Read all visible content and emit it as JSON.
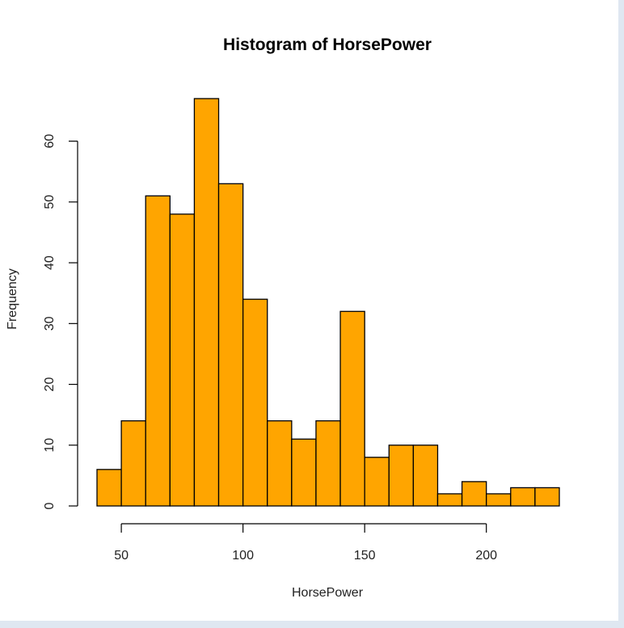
{
  "chart_data": {
    "type": "bar",
    "title": "Histogram of HorsePower",
    "xlabel": "HorsePower",
    "ylabel": "Frequency",
    "bin_edges": [
      40,
      50,
      60,
      70,
      80,
      90,
      100,
      110,
      120,
      130,
      140,
      150,
      160,
      170,
      180,
      190,
      200,
      210,
      220,
      230
    ],
    "values": [
      6,
      14,
      51,
      48,
      67,
      53,
      34,
      14,
      11,
      14,
      32,
      8,
      10,
      10,
      2,
      4,
      2,
      3,
      3
    ],
    "xlim": [
      40,
      230
    ],
    "ylim": [
      0,
      67
    ],
    "x_ticks": [
      50,
      100,
      150,
      200
    ],
    "y_ticks": [
      0,
      10,
      20,
      30,
      40,
      50,
      60
    ],
    "grid": false,
    "bar_color": "#FFA500",
    "bar_edge_color": "#000000"
  }
}
